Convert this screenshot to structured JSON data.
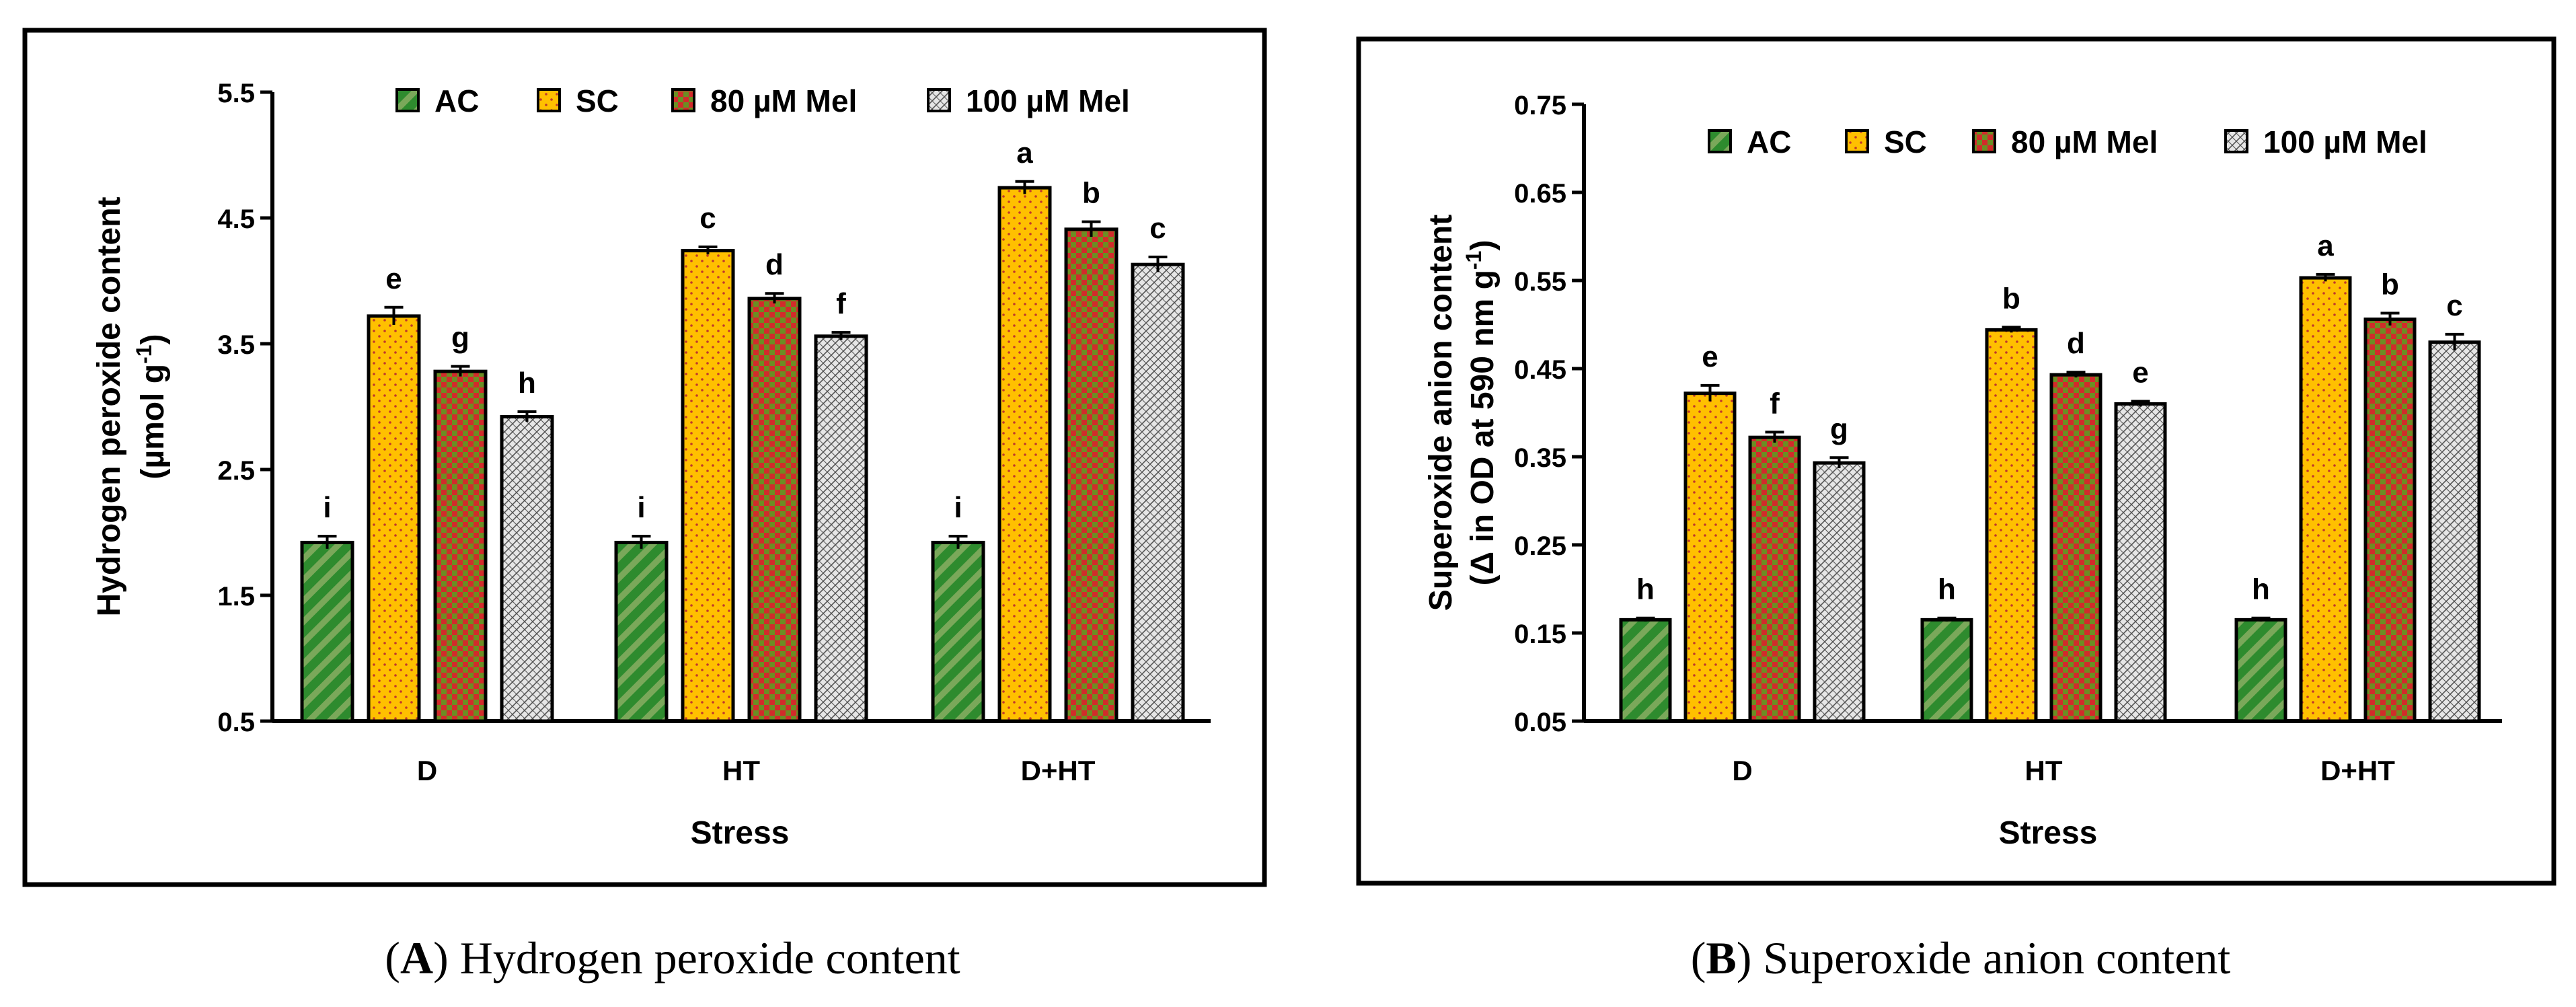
{
  "chart_data": [
    {
      "type": "bar",
      "caption_letter": "A",
      "caption_text": "Hydrogen peroxide content",
      "title": "",
      "xlabel": "Stress",
      "ylabel_line1": "Hydrogen peroxide content",
      "ylabel_line2": "(µmol g",
      "ylabel_sup": "-1",
      "ylabel_close": ")",
      "categories": [
        "D",
        "HT",
        "D+HT"
      ],
      "ylim": [
        0.5,
        5.5
      ],
      "yticks": [
        "0.5",
        "1.5",
        "2.5",
        "3.5",
        "4.5",
        "5.5"
      ],
      "legend_position": "top",
      "series": [
        {
          "name": "AC",
          "values": [
            1.92,
            1.92,
            1.92
          ],
          "errors": [
            0.05,
            0.05,
            0.05
          ],
          "letters": [
            "i",
            "i",
            "i"
          ]
        },
        {
          "name": "SC",
          "values": [
            3.72,
            4.24,
            4.74
          ],
          "errors": [
            0.07,
            0.03,
            0.05
          ],
          "letters": [
            "e",
            "c",
            "a"
          ]
        },
        {
          "name": "80 µM Mel",
          "values": [
            3.28,
            3.86,
            4.41
          ],
          "errors": [
            0.04,
            0.04,
            0.06
          ],
          "letters": [
            "g",
            "d",
            "b"
          ]
        },
        {
          "name": "100 µM Mel",
          "values": [
            2.92,
            3.56,
            4.13
          ],
          "errors": [
            0.04,
            0.03,
            0.06
          ],
          "letters": [
            "h",
            "f",
            "c"
          ]
        }
      ]
    },
    {
      "type": "bar",
      "caption_letter": "B",
      "caption_text": "Superoxide anion content",
      "title": "",
      "xlabel": "Stress",
      "ylabel_line1": "Superoxide anion content",
      "ylabel_line2": "(Δ in OD at 590 nm g",
      "ylabel_sup": "-1",
      "ylabel_close": ")",
      "categories": [
        "D",
        "HT",
        "D+HT"
      ],
      "ylim": [
        0.05,
        0.75
      ],
      "yticks": [
        "0.05",
        "0.15",
        "0.25",
        "0.35",
        "0.45",
        "0.55",
        "0.65",
        "0.75"
      ],
      "legend_position": "top",
      "series": [
        {
          "name": "AC",
          "values": [
            0.165,
            0.165,
            0.165
          ],
          "errors": [
            0.002,
            0.002,
            0.002
          ],
          "letters": [
            "h",
            "h",
            "h"
          ]
        },
        {
          "name": "SC",
          "values": [
            0.422,
            0.494,
            0.553
          ],
          "errors": [
            0.009,
            0.003,
            0.004
          ],
          "letters": [
            "e",
            "b",
            "a"
          ]
        },
        {
          "name": "80 µM Mel",
          "values": [
            0.372,
            0.443,
            0.506
          ],
          "errors": [
            0.006,
            0.003,
            0.007
          ],
          "letters": [
            "f",
            "d",
            "b"
          ]
        },
        {
          "name": "100 µM Mel",
          "values": [
            0.343,
            0.41,
            0.48
          ],
          "errors": [
            0.006,
            0.003,
            0.009
          ],
          "letters": [
            "g",
            "e",
            "c"
          ]
        }
      ]
    }
  ],
  "colors": {
    "AC": "#2e8b2e",
    "AC_stripe": "#7aa85a",
    "SC": "#ffc000",
    "SC_dot": "#c0392b",
    "Mel80_a": "#d22b2b",
    "Mel80_b": "#6b8e23",
    "Mel100_bg": "#e6e6e6",
    "Mel100_line": "#555555"
  }
}
